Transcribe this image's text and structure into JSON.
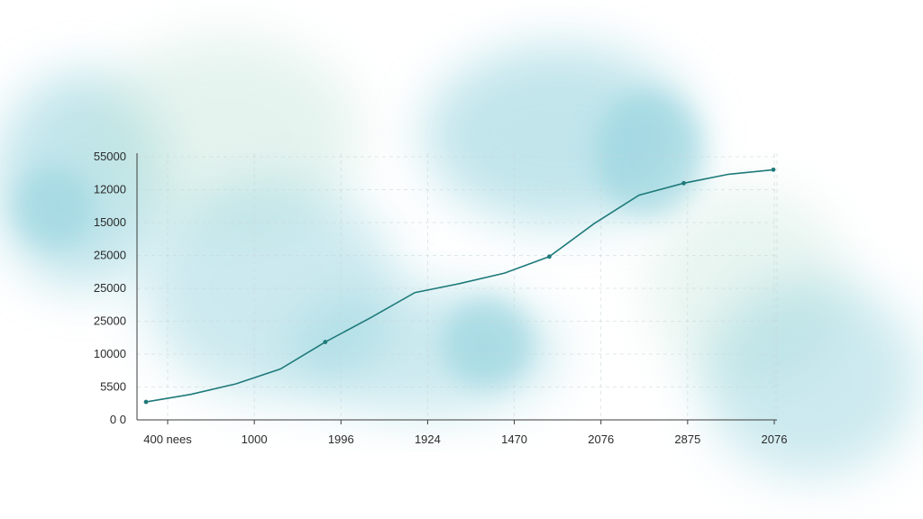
{
  "colors": {
    "line": "#1f7a7a",
    "wash_primary": "#8fd0dc",
    "wash_secondary": "#bfe3d6"
  },
  "chart_data": {
    "type": "line",
    "title": "",
    "xlabel": "",
    "ylabel": "",
    "grid": true,
    "y_tick_labels": [
      "0 0",
      "5500",
      "10000",
      "25000",
      "25000",
      "25000",
      "15000",
      "12000",
      "55000"
    ],
    "x_tick_labels": [
      "400 nees",
      "1000",
      "1996",
      "1924",
      "1470",
      "2076",
      "2875",
      "2076"
    ],
    "ylim": [
      0,
      8
    ],
    "x": [
      0,
      1,
      2,
      3,
      4,
      5,
      6,
      7,
      8,
      9,
      10,
      11,
      12,
      13,
      14
    ],
    "values": [
      0.6,
      0.85,
      1.2,
      1.7,
      2.6,
      3.4,
      4.25,
      4.55,
      4.9,
      5.45,
      6.55,
      7.5,
      7.9,
      8.2,
      8.35
    ],
    "markers_at": [
      0,
      4,
      9,
      12,
      14
    ],
    "note": ""
  }
}
